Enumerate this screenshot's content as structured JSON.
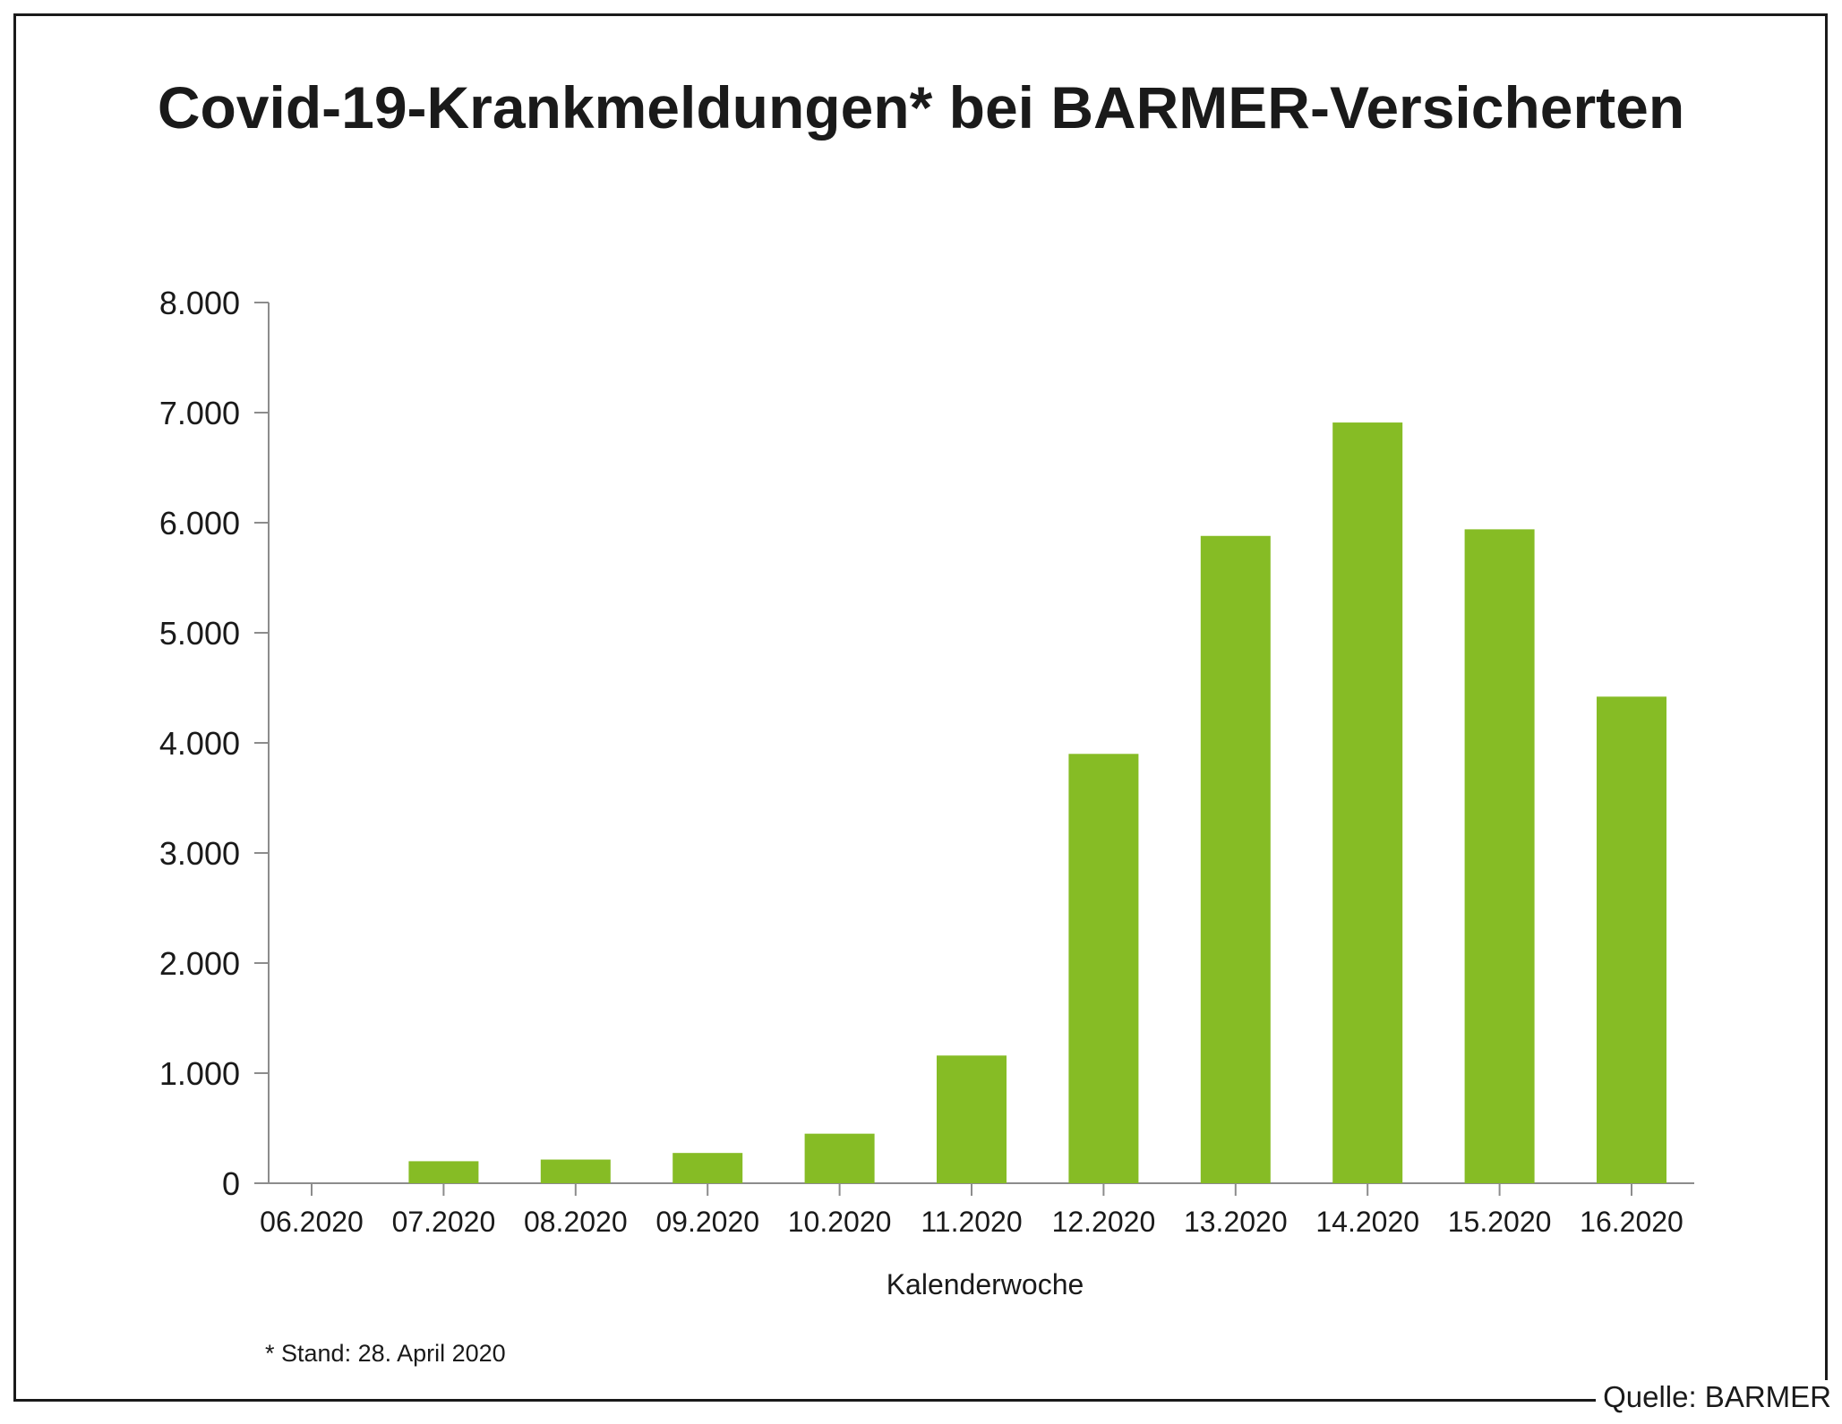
{
  "chart_data": {
    "type": "bar",
    "title": "Covid-19-Krankmeldungen* bei BARMER-Versicherten",
    "xlabel": "Kalenderwoche",
    "ylabel": "",
    "categories": [
      "06.2020",
      "07.2020",
      "08.2020",
      "09.2020",
      "10.2020",
      "11.2020",
      "12.2020",
      "13.2020",
      "14.2020",
      "15.2020",
      "16.2020"
    ],
    "values": [
      0,
      200,
      215,
      275,
      450,
      1160,
      3900,
      5880,
      6910,
      5940,
      4420
    ],
    "ylim": [
      0,
      8000
    ],
    "yticks": [
      0,
      1000,
      2000,
      3000,
      4000,
      5000,
      6000,
      7000,
      8000
    ],
    "ytick_labels": [
      "0",
      "1.000",
      "2.000",
      "3.000",
      "4.000",
      "5.000",
      "6.000",
      "7.000",
      "8.000"
    ],
    "bar_color": "#86bc25",
    "axis_color": "#8c8c8c",
    "grid": false,
    "legend": "none"
  },
  "footnote": "* Stand: 28. April 2020",
  "source": "Quelle: BARMER"
}
